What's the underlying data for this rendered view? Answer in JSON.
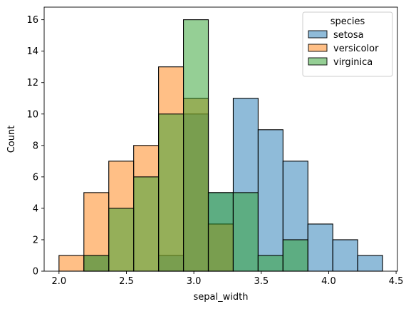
{
  "chart_data": {
    "type": "histogram",
    "xlabel": "sepal_width",
    "ylabel": "Count",
    "xlim": [
      1.89,
      4.51
    ],
    "ylim": [
      0,
      16.8
    ],
    "bin_start": 2.0,
    "bin_width": 0.1846,
    "xticks": [
      "2.0",
      "2.5",
      "3.0",
      "3.5",
      "4.0",
      "4.5"
    ],
    "yticks": [
      "0",
      "2",
      "4",
      "6",
      "8",
      "10",
      "12",
      "14",
      "16"
    ],
    "legend": {
      "title": "species",
      "position": "upper right"
    },
    "series": [
      {
        "name": "setosa",
        "color": "#1f77b4",
        "counts": [
          0,
          1,
          0,
          0,
          1,
          10,
          5,
          11,
          9,
          7,
          3,
          2,
          1
        ]
      },
      {
        "name": "versicolor",
        "color": "#ff7f0e",
        "counts": [
          1,
          5,
          7,
          8,
          13,
          11,
          3,
          0,
          0,
          0,
          0,
          0,
          0
        ]
      },
      {
        "name": "virginica",
        "color": "#2ca02c",
        "counts": [
          0,
          1,
          4,
          6,
          10,
          16,
          5,
          5,
          1,
          2,
          0,
          0,
          0
        ]
      }
    ]
  }
}
